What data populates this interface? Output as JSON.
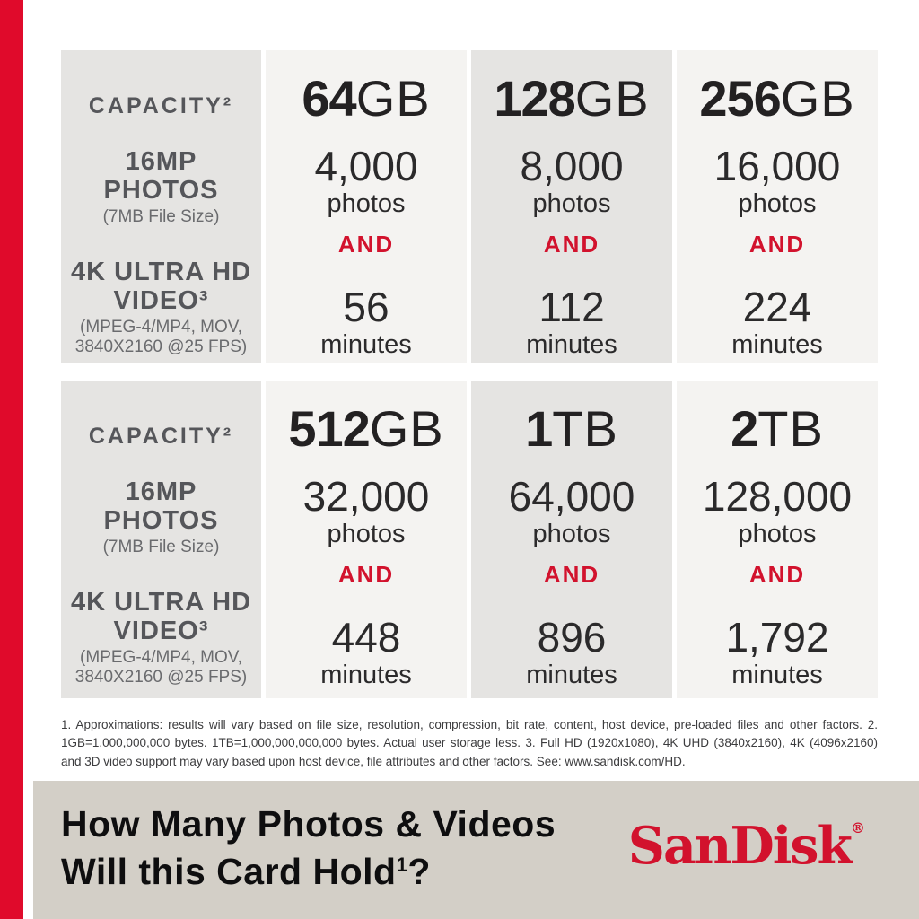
{
  "brand_red": "#e00a2b",
  "and_red": "#d2122d",
  "banner_bg": "#d3cfc7",
  "labels": {
    "capacity": "CAPACITY²",
    "photos_title_line1": "16MP",
    "photos_title_line2": "PHOTOS",
    "photos_subtitle": "(7MB File Size)",
    "video_title_line1": "4K ULTRA HD",
    "video_title_line2": "VIDEO³",
    "video_subtitle_line1": "(MPEG-4/MP4, MOV,",
    "video_subtitle_line2": "3840X2160 @25 FPS)"
  },
  "units": {
    "photos": "photos",
    "minutes": "minutes",
    "and": "AND"
  },
  "tables": [
    {
      "columns": [
        {
          "capacity_bold": "64",
          "capacity_unit": "GB",
          "photos": "4,000",
          "minutes": "56"
        },
        {
          "capacity_bold": "128",
          "capacity_unit": "GB",
          "photos": "8,000",
          "minutes": "112"
        },
        {
          "capacity_bold": "256",
          "capacity_unit": "GB",
          "photos": "16,000",
          "minutes": "224"
        }
      ]
    },
    {
      "columns": [
        {
          "capacity_bold": "512",
          "capacity_unit": "GB",
          "photos": "32,000",
          "minutes": "448"
        },
        {
          "capacity_bold": "1",
          "capacity_unit": "TB",
          "photos": "64,000",
          "minutes": "896"
        },
        {
          "capacity_bold": "2",
          "capacity_unit": "TB",
          "photos": "128,000",
          "minutes": "1,792"
        }
      ]
    }
  ],
  "footnote": "1. Approximations: results will vary based on file size, resolution, compression, bit rate, content, host device, pre-loaded files and other factors. 2. 1GB=1,000,000,000 bytes. 1TB=1,000,000,000,000 bytes. Actual user storage less. 3. Full HD (1920x1080), 4K UHD (3840x2160), 4K (4096x2160) and 3D video support may vary based upon host device, file attributes and other factors. See: www.sandisk.com/HD.",
  "banner": {
    "title_line1": "How Many Photos & Videos",
    "title_line2": "Will this Card Hold",
    "title_superscript": "1",
    "title_end": "?",
    "brand": "SanDisk",
    "registered": "®"
  },
  "chart_data": {
    "type": "table",
    "title": "How Many Photos & Videos Will this Card Hold?",
    "columns": [
      "Capacity",
      "16MP Photos (7MB file size)",
      "4K Ultra HD Video minutes (MPEG-4/MP4, MOV, 3840x2160 @25 FPS)"
    ],
    "rows": [
      [
        "64GB",
        4000,
        56
      ],
      [
        "128GB",
        8000,
        112
      ],
      [
        "256GB",
        16000,
        224
      ],
      [
        "512GB",
        32000,
        448
      ],
      [
        "1TB",
        64000,
        896
      ],
      [
        "2TB",
        128000,
        1792
      ]
    ]
  }
}
